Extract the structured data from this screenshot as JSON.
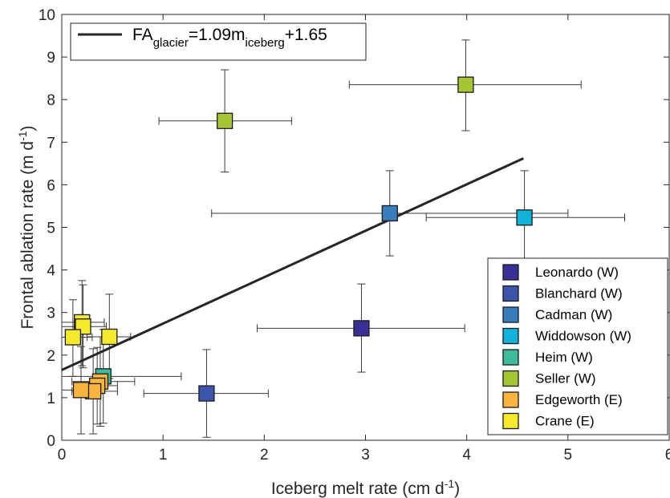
{
  "chart_data": {
    "type": "scatter",
    "title": "",
    "xlabel": "Iceberg melt rate (cm d",
    "xlabel_sup": "-1",
    "xlabel_end": ")",
    "ylabel": "Frontal ablation rate (m d",
    "ylabel_sup": "-1",
    "ylabel_end": ")",
    "xlim": [
      0,
      6
    ],
    "ylim": [
      0,
      10
    ],
    "xticks": [
      "0",
      "1",
      "2",
      "3",
      "4",
      "5",
      "6"
    ],
    "yticks": [
      "0",
      "1",
      "2",
      "3",
      "4",
      "5",
      "6",
      "7",
      "8",
      "9",
      "10"
    ],
    "grid": false,
    "fit": {
      "label_parts": [
        "FA",
        "glacier",
        "=1.09m",
        "iceberg",
        "+1.65"
      ],
      "slope": 1.09,
      "intercept": 1.65,
      "x_range": [
        0,
        4.56
      ],
      "color": "#262626"
    },
    "legend_position": "lower-right",
    "series": [
      {
        "name": "Leonardo (W)",
        "color": "#3a2f96",
        "points": [
          {
            "x": 2.96,
            "y": 2.63,
            "xerr": [
              1.93,
              3.98
            ],
            "yerr": [
              1.6,
              3.67
            ]
          }
        ]
      },
      {
        "name": "Blanchard (W)",
        "color": "#3c55ab",
        "points": [
          {
            "x": 1.43,
            "y": 1.1,
            "xerr": [
              0.81,
              2.04
            ],
            "yerr": [
              0.07,
              2.13
            ]
          }
        ]
      },
      {
        "name": "Cadman (W)",
        "color": "#3a7dbd",
        "points": [
          {
            "x": 3.24,
            "y": 5.33,
            "xerr": [
              1.48,
              5.0
            ],
            "yerr": [
              4.33,
              6.33
            ]
          }
        ]
      },
      {
        "name": "Widdowson (W)",
        "color": "#12b3d8",
        "points": [
          {
            "x": 4.57,
            "y": 5.23,
            "xerr": [
              3.6,
              5.56
            ],
            "yerr": [
              4.13,
              6.33
            ]
          }
        ]
      },
      {
        "name": "Heim (W)",
        "color": "#3dbb9a",
        "points": [
          {
            "x": 0.41,
            "y": 1.5,
            "xerr": [
              0.0,
              1.18
            ],
            "yerr": [
              0.4,
              2.6
            ]
          }
        ]
      },
      {
        "name": "Seller (W)",
        "color": "#a6c535",
        "points": [
          {
            "x": 1.61,
            "y": 7.5,
            "xerr": [
              0.96,
              2.27
            ],
            "yerr": [
              6.3,
              8.7
            ]
          },
          {
            "x": 3.99,
            "y": 8.35,
            "xerr": [
              2.84,
              5.13
            ],
            "yerr": [
              7.27,
              9.4
            ]
          }
        ]
      },
      {
        "name": "Edgeworth (E)",
        "color": "#fbb53e",
        "points": [
          {
            "x": 0.38,
            "y": 1.38,
            "xerr": [
              0.1,
              0.72
            ],
            "yerr": [
              0.33,
              2.43
            ]
          },
          {
            "x": 0.35,
            "y": 1.28,
            "xerr": [
              0.15,
              0.55
            ],
            "yerr": [
              0.38,
              2.18
            ]
          },
          {
            "x": 0.31,
            "y": 1.15,
            "xerr": [
              0.1,
              0.55
            ],
            "yerr": [
              0.15,
              2.15
            ]
          },
          {
            "x": 0.19,
            "y": 1.18,
            "xerr": [
              0.0,
              0.4
            ],
            "yerr": [
              0.15,
              2.2
            ]
          }
        ]
      },
      {
        "name": "Crane (E)",
        "color": "#f6e92c",
        "points": [
          {
            "x": 0.2,
            "y": 2.77,
            "xerr": [
              0.0,
              0.42
            ],
            "yerr": [
              1.75,
              3.75
            ]
          },
          {
            "x": 0.21,
            "y": 2.67,
            "xerr": [
              0.0,
              0.44
            ],
            "yerr": [
              1.7,
              3.65
            ]
          },
          {
            "x": 0.11,
            "y": 2.42,
            "xerr": [
              0.0,
              0.3
            ],
            "yerr": [
              1.5,
              3.3
            ]
          },
          {
            "x": 0.47,
            "y": 2.43,
            "xerr": [
              0.25,
              0.68
            ],
            "yerr": [
              1.45,
              3.43
            ]
          }
        ]
      }
    ]
  }
}
